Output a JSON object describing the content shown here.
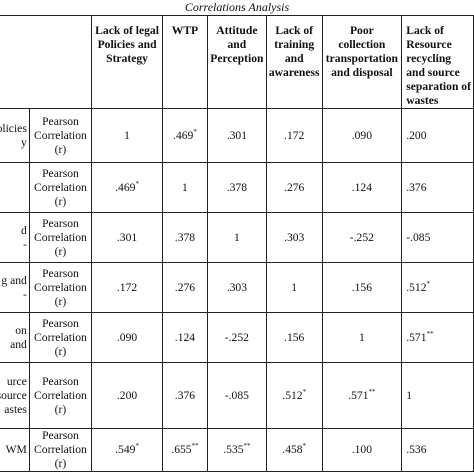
{
  "caption": "Correlations Analysis",
  "headers": [
    "Lack of legal Policies and Strategy",
    "WTP",
    "Attitude and Perception",
    "Lack of training and awareness",
    "Poor collection transportation and disposal",
    "Lack of Resource recycling and source separation of wastes"
  ],
  "header_lines": [
    [
      "Lack of legal",
      "Policies and",
      "Strategy"
    ],
    [
      "WTP"
    ],
    [
      "Attitude",
      "and",
      "Perception"
    ],
    [
      "Lack of",
      "training",
      "and",
      "awareness"
    ],
    [
      "Poor",
      "collection",
      "transportation",
      "and disposal"
    ],
    [
      "Lack of",
      "Resource",
      "recycling",
      "and source",
      "separation of",
      "wastes"
    ]
  ],
  "row_label_lines": [
    [
      "olicies",
      "y"
    ],
    [
      ""
    ],
    [
      "d",
      "-"
    ],
    [
      "g and",
      "-"
    ],
    [
      "on",
      "and"
    ],
    [
      "urce",
      "source",
      "astes"
    ],
    [
      "WM",
      ""
    ]
  ],
  "stat_label_lines": [
    [
      "Pearson",
      "Correlation",
      "(r)"
    ],
    [
      "Pearson",
      "Correlation",
      "(r)"
    ],
    [
      "Pearson",
      "Correlation",
      "(r)"
    ],
    [
      "Pearson",
      "Correlation",
      "(r)"
    ],
    [
      "Pearson",
      "Correlation",
      "(r)"
    ],
    [
      "Pearson",
      "Correlation",
      "(r)"
    ],
    [
      "Pearson",
      "Correlation",
      "(r)"
    ]
  ],
  "rows": [
    [
      {
        "v": "1",
        "s": ""
      },
      {
        "v": ".469",
        "s": "*"
      },
      {
        "v": ".301",
        "s": ""
      },
      {
        "v": ".172",
        "s": ""
      },
      {
        "v": ".090",
        "s": ""
      },
      {
        "v": ".200",
        "s": ""
      }
    ],
    [
      {
        "v": ".469",
        "s": "*"
      },
      {
        "v": "1",
        "s": ""
      },
      {
        "v": ".378",
        "s": ""
      },
      {
        "v": ".276",
        "s": ""
      },
      {
        "v": ".124",
        "s": ""
      },
      {
        "v": ".376",
        "s": ""
      }
    ],
    [
      {
        "v": ".301",
        "s": ""
      },
      {
        "v": ".378",
        "s": ""
      },
      {
        "v": "1",
        "s": ""
      },
      {
        "v": ".303",
        "s": ""
      },
      {
        "v": "-.252",
        "s": ""
      },
      {
        "v": "-.085",
        "s": ""
      }
    ],
    [
      {
        "v": ".172",
        "s": ""
      },
      {
        "v": ".276",
        "s": ""
      },
      {
        "v": ".303",
        "s": ""
      },
      {
        "v": "1",
        "s": ""
      },
      {
        "v": ".156",
        "s": ""
      },
      {
        "v": ".512",
        "s": "*"
      }
    ],
    [
      {
        "v": ".090",
        "s": ""
      },
      {
        "v": ".124",
        "s": ""
      },
      {
        "v": "-.252",
        "s": ""
      },
      {
        "v": ".156",
        "s": ""
      },
      {
        "v": "1",
        "s": ""
      },
      {
        "v": ".571",
        "s": "**"
      }
    ],
    [
      {
        "v": ".200",
        "s": ""
      },
      {
        "v": ".376",
        "s": ""
      },
      {
        "v": "-.085",
        "s": ""
      },
      {
        "v": ".512",
        "s": "*"
      },
      {
        "v": ".571",
        "s": "**"
      },
      {
        "v": "1",
        "s": ""
      }
    ],
    [
      {
        "v": ".549",
        "s": "*"
      },
      {
        "v": ".655",
        "s": "**"
      },
      {
        "v": ".535",
        "s": "**"
      },
      {
        "v": ".458",
        "s": "*"
      },
      {
        "v": ".100",
        "s": ""
      },
      {
        "v": ".536",
        "s": ""
      }
    ]
  ]
}
